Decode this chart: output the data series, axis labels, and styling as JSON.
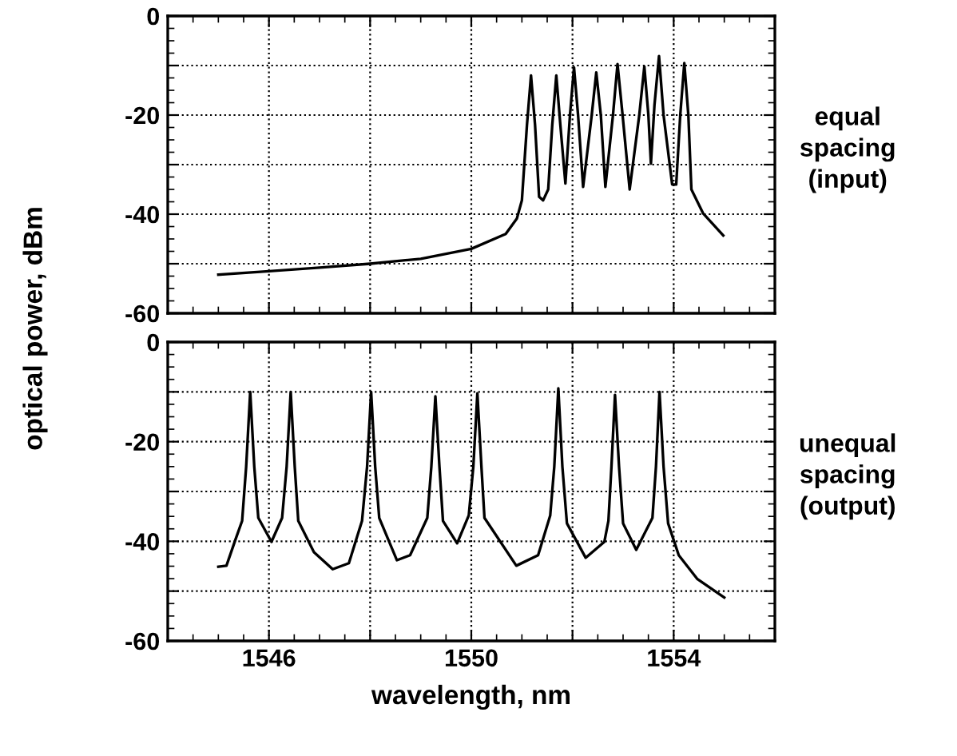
{
  "chart_data": [
    {
      "type": "line",
      "ylabel": "optical power, dBm",
      "annotations": [
        "equal\nspacing\n(input)"
      ],
      "tick_labels": "y",
      "grid": true,
      "marker": "none",
      "line_style": "solid",
      "xlim": [
        1544,
        1556
      ],
      "xticks": [
        {
          "value": 1546,
          "label": null
        },
        {
          "value": 1548,
          "label": null
        },
        {
          "value": 1550,
          "label": null
        },
        {
          "value": 1552,
          "label": null
        },
        {
          "value": 1554,
          "label": null
        }
      ],
      "ylim": [
        -60,
        0
      ],
      "yticks": [
        -60,
        {
          "value": -50,
          "label": null
        },
        -40,
        {
          "value": -30,
          "label": null
        },
        -20,
        {
          "value": -10,
          "label": null
        },
        0
      ],
      "series": [
        {
          "color": "#000000",
          "x": [
            1545.0,
            1546.0,
            1547.0,
            1548.0,
            1549.0,
            1550.0,
            1550.68,
            1550.9,
            1551.0,
            1551.1,
            1551.18,
            1551.26,
            1551.34,
            1551.42,
            1551.52,
            1551.6,
            1551.68,
            1551.76,
            1551.86,
            1551.95,
            1552.03,
            1552.11,
            1552.21,
            1552.38,
            1552.47,
            1552.56,
            1552.65,
            1552.8,
            1552.89,
            1552.99,
            1553.13,
            1553.32,
            1553.42,
            1553.5,
            1553.55,
            1553.62,
            1553.71,
            1553.8,
            1553.97,
            1554.05,
            1554.13,
            1554.21,
            1554.29,
            1554.35,
            1554.58,
            1554.98
          ],
          "values": [
            -52.2,
            -51.5,
            -50.8,
            -50.0,
            -49.0,
            -47.0,
            -44.0,
            -40.9,
            -37.2,
            -22.0,
            -12.0,
            -22.0,
            -36.5,
            -37.2,
            -35.0,
            -22.0,
            -12.0,
            -22.0,
            -33.8,
            -20.0,
            -10.4,
            -20.0,
            -34.5,
            -20.0,
            -11.4,
            -20.0,
            -34.5,
            -20.0,
            -9.7,
            -20.0,
            -35.0,
            -20.0,
            -10.2,
            -20.0,
            -29.8,
            -18.0,
            -8.1,
            -20.0,
            -34.0,
            -34.0,
            -20.0,
            -9.5,
            -20.0,
            -35.0,
            -39.8,
            -44.3
          ]
        }
      ]
    },
    {
      "type": "line",
      "xlabel": "wavelength, nm",
      "annotations": [
        "unequal\nspacing\n(output)"
      ],
      "grid": true,
      "marker": "none",
      "line_style": "solid",
      "xlim": [
        1544,
        1556
      ],
      "xticks": [
        1546,
        {
          "value": 1548,
          "label": null
        },
        1550,
        {
          "value": 1552,
          "label": null
        },
        1554
      ],
      "ylim": [
        -60,
        0
      ],
      "yticks": [
        -60,
        {
          "value": -50,
          "label": null
        },
        -40,
        {
          "value": -30,
          "label": null
        },
        -20,
        {
          "value": -10,
          "label": null
        },
        0
      ],
      "series": [
        {
          "color": "#000000",
          "x": [
            1545.0,
            1545.16,
            1545.34,
            1545.47,
            1545.55,
            1545.63,
            1545.71,
            1545.79,
            1546.05,
            1546.26,
            1546.35,
            1546.43,
            1546.51,
            1546.58,
            1546.89,
            1547.26,
            1547.58,
            1547.84,
            1547.94,
            1548.02,
            1548.1,
            1548.18,
            1548.53,
            1548.79,
            1549.13,
            1549.21,
            1549.29,
            1549.37,
            1549.44,
            1549.72,
            1549.95,
            1550.04,
            1550.12,
            1550.2,
            1550.26,
            1550.89,
            1551.32,
            1551.56,
            1551.64,
            1551.72,
            1551.8,
            1551.89,
            1552.26,
            1552.63,
            1552.71,
            1552.77,
            1552.84,
            1552.92,
            1553.0,
            1553.26,
            1553.58,
            1553.65,
            1553.72,
            1553.8,
            1553.89,
            1554.1,
            1554.47,
            1555.0
          ],
          "values": [
            -45.1,
            -44.9,
            -39.6,
            -35.9,
            -25.0,
            -10.0,
            -25.0,
            -35.3,
            -40.1,
            -35.3,
            -25.0,
            -10.0,
            -25.0,
            -35.9,
            -42.2,
            -45.6,
            -44.4,
            -35.9,
            -25.0,
            -10.0,
            -25.0,
            -35.3,
            -43.8,
            -42.8,
            -35.3,
            -25.0,
            -10.9,
            -25.0,
            -35.9,
            -40.4,
            -34.8,
            -25.0,
            -10.3,
            -25.0,
            -35.3,
            -44.9,
            -42.8,
            -34.8,
            -25.0,
            -9.3,
            -25.0,
            -36.4,
            -43.3,
            -40.1,
            -35.9,
            -25.0,
            -10.6,
            -25.0,
            -36.4,
            -41.7,
            -35.3,
            -25.0,
            -10.0,
            -25.0,
            -36.4,
            -42.8,
            -47.6,
            -51.3
          ]
        }
      ]
    }
  ]
}
